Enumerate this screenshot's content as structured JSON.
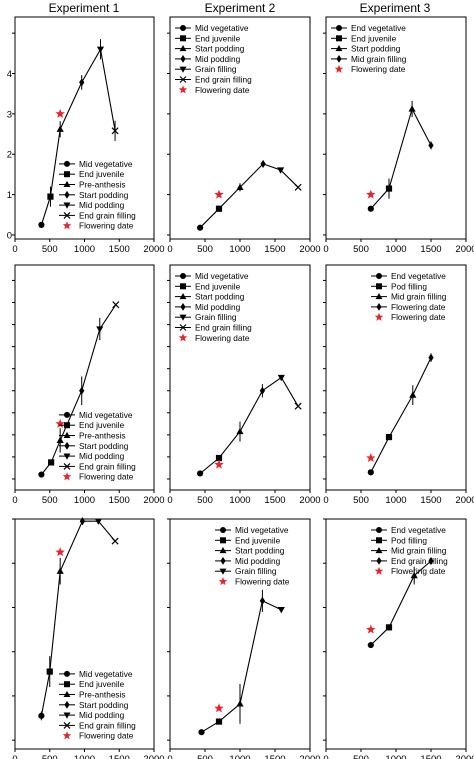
{
  "column_titles": [
    "Experiment 1",
    "Experiment 2",
    "Experiment 3"
  ],
  "colors": {
    "series": "#000000",
    "flowering": "#e8242c"
  },
  "chart_data": [
    {
      "type": "line",
      "title": "Experiment 1",
      "xlim": [
        0,
        2000
      ],
      "ylim": [
        -0.1,
        5.4
      ],
      "xticks": [
        0,
        500,
        1000,
        1500,
        2000
      ],
      "yticks": [
        0,
        1,
        2,
        3,
        4
      ],
      "legend_position": "bottom-right",
      "series": [
        {
          "name": "Mid vegetative",
          "marker": "circle",
          "x": 380,
          "y": 0.25,
          "err": 0.05
        },
        {
          "name": "End juvenile",
          "marker": "square",
          "x": 510,
          "y": 0.95,
          "err": 0.25
        },
        {
          "name": "Pre-anthesis",
          "marker": "triangle-up",
          "x": 650,
          "y": 2.62,
          "err": 0.2
        },
        {
          "name": "Start podding",
          "marker": "diamond",
          "x": 960,
          "y": 3.78,
          "err": 0.18
        },
        {
          "name": "Mid podding",
          "marker": "triangle-down",
          "x": 1230,
          "y": 4.6,
          "err": 0.25
        },
        {
          "name": "End grain filling",
          "marker": "x",
          "x": 1440,
          "y": 2.58,
          "err": 0.25
        }
      ],
      "flowering_date": {
        "name": "Flowering date",
        "x": 650,
        "y": 3.0
      }
    },
    {
      "type": "line",
      "title": "Experiment 2",
      "xlim": [
        0,
        2000
      ],
      "ylim": [
        -0.1,
        5.4
      ],
      "xticks": [
        0,
        500,
        1000,
        1500,
        2000
      ],
      "yticks": [],
      "legend_position": "top-left",
      "series": [
        {
          "name": "Mid vegetative",
          "marker": "circle",
          "x": 430,
          "y": 0.18,
          "err": 0
        },
        {
          "name": "End juvenile",
          "marker": "square",
          "x": 700,
          "y": 0.65,
          "err": 0
        },
        {
          "name": "Start podding",
          "marker": "triangle-up",
          "x": 1000,
          "y": 1.18,
          "err": 0.1
        },
        {
          "name": "Mid podding",
          "marker": "diamond",
          "x": 1330,
          "y": 1.76,
          "err": 0.05
        },
        {
          "name": "Grain filling",
          "marker": "triangle-down",
          "x": 1580,
          "y": 1.61,
          "err": 0
        },
        {
          "name": "End grain filling",
          "marker": "x",
          "x": 1830,
          "y": 1.18,
          "err": 0
        }
      ],
      "flowering_date": {
        "name": "Flowering date",
        "x": 700,
        "y": 1.0
      }
    },
    {
      "type": "line",
      "title": "Experiment 3",
      "xlim": [
        0,
        2000
      ],
      "ylim": [
        -0.1,
        5.4
      ],
      "xticks": [
        0,
        500,
        1000,
        1500,
        2000
      ],
      "yticks": [],
      "legend_position": "top-left",
      "series": [
        {
          "name": "End vegetative",
          "marker": "circle",
          "x": 640,
          "y": 0.65,
          "err": 0
        },
        {
          "name": "End juvenile",
          "marker": "square",
          "x": 900,
          "y": 1.15,
          "err": 0.25
        },
        {
          "name": "Start podding",
          "marker": "triangle-up",
          "x": 1230,
          "y": 3.12,
          "err": 0.2
        },
        {
          "name": "Mid grain filling",
          "marker": "diamond",
          "x": 1500,
          "y": 2.22,
          "err": 0.1
        }
      ],
      "flowering_date": {
        "name": "Flowering date",
        "x": 640,
        "y": 1.0
      }
    },
    {
      "type": "line",
      "xlim": [
        0,
        2000
      ],
      "ylim": [
        -0.5,
        9.7
      ],
      "xticks": [
        0,
        500,
        1000,
        1500,
        2000
      ],
      "yticks": [],
      "legend_position": "bottom-right",
      "series": [
        {
          "name": "Mid vegetative",
          "marker": "circle",
          "x": 380,
          "y": 0.2,
          "err": 0
        },
        {
          "name": "End juvenile",
          "marker": "square",
          "x": 520,
          "y": 0.75,
          "err": 0
        },
        {
          "name": "Pre-anthesis",
          "marker": "triangle-up",
          "x": 650,
          "y": 1.75,
          "err": 0.55
        },
        {
          "name": "Start podding",
          "marker": "diamond",
          "x": 960,
          "y": 4.0,
          "err": 0.65
        },
        {
          "name": "Mid podding",
          "marker": "triangle-down",
          "x": 1220,
          "y": 6.8,
          "err": 0.5
        },
        {
          "name": "End grain filling",
          "marker": "x",
          "x": 1450,
          "y": 7.9,
          "err": 0
        }
      ],
      "flowering_date": {
        "name": "Flowering date",
        "x": 650,
        "y": 2.5
      }
    },
    {
      "type": "line",
      "xlim": [
        0,
        2000
      ],
      "ylim": [
        -0.5,
        9.7
      ],
      "xticks": [
        0,
        500,
        1000,
        1500,
        2000
      ],
      "yticks": [],
      "legend_position": "top-left",
      "series": [
        {
          "name": "Mid vegetative",
          "marker": "circle",
          "x": 430,
          "y": 0.25,
          "err": 0
        },
        {
          "name": "End juvenile",
          "marker": "square",
          "x": 700,
          "y": 0.95,
          "err": 0
        },
        {
          "name": "Start podding",
          "marker": "triangle-up",
          "x": 1000,
          "y": 2.15,
          "err": 0.45
        },
        {
          "name": "Mid podding",
          "marker": "diamond",
          "x": 1320,
          "y": 4.0,
          "err": 0.3
        },
        {
          "name": "Grain filling",
          "marker": "triangle-down",
          "x": 1590,
          "y": 4.6,
          "err": 0
        },
        {
          "name": "End grain filling",
          "marker": "x",
          "x": 1830,
          "y": 3.3,
          "err": 0
        }
      ],
      "flowering_date": {
        "name": "Flowering date",
        "x": 700,
        "y": 0.65
      }
    },
    {
      "type": "line",
      "xlim": [
        0,
        2000
      ],
      "ylim": [
        -0.5,
        9.7
      ],
      "xticks": [
        0,
        500,
        1000,
        1500,
        2000
      ],
      "yticks": [],
      "legend_position": "top-right",
      "series": [
        {
          "name": "End vegetative",
          "marker": "circle",
          "x": 640,
          "y": 0.3,
          "err": 0
        },
        {
          "name": "Pod filling",
          "marker": "square",
          "x": 900,
          "y": 1.9,
          "err": 0
        },
        {
          "name": "Mid grain filling",
          "marker": "triangle-up",
          "x": 1240,
          "y": 3.8,
          "err": 0.45
        },
        {
          "name": "Flowering date",
          "marker": "diamond",
          "x": 1500,
          "y": 5.5,
          "err": 0.2
        }
      ],
      "flowering_date": {
        "name": "Flowering date",
        "x": 640,
        "y": 0.95
      }
    },
    {
      "type": "line",
      "xlim": [
        0,
        2000
      ],
      "ylim": [
        -0.2,
        5.0
      ],
      "xticks": [
        0,
        500,
        1000,
        1500,
        2000
      ],
      "yticks": [],
      "legend_position": "bottom-right",
      "series": [
        {
          "name": "Mid vegetative",
          "marker": "circle",
          "x": 380,
          "y": 0.55,
          "err": 0.1
        },
        {
          "name": "End juvenile",
          "marker": "square",
          "x": 500,
          "y": 1.55,
          "err": 0.35
        },
        {
          "name": "Pre-anthesis",
          "marker": "triangle-up",
          "x": 650,
          "y": 3.82,
          "err": 0.3
        },
        {
          "name": "Start podding",
          "marker": "diamond",
          "x": 970,
          "y": 4.95,
          "err": 0.08
        },
        {
          "name": "Mid podding",
          "marker": "triangle-down",
          "x": 1200,
          "y": 4.95,
          "err": 0
        },
        {
          "name": "End grain filling",
          "marker": "x",
          "x": 1440,
          "y": 4.5,
          "err": 0
        }
      ],
      "flowering_date": {
        "name": "Flowering date",
        "x": 650,
        "y": 4.25
      }
    },
    {
      "type": "line",
      "xlim": [
        0,
        2000
      ],
      "ylim": [
        -0.2,
        5.0
      ],
      "xticks": [
        0,
        500,
        1000,
        1500,
        2000
      ],
      "yticks": [],
      "legend_position": "top-right",
      "series": [
        {
          "name": "Mid vegetative",
          "marker": "circle",
          "x": 450,
          "y": 0.18,
          "err": 0
        },
        {
          "name": "End juvenile",
          "marker": "square",
          "x": 700,
          "y": 0.42,
          "err": 0
        },
        {
          "name": "Start podding",
          "marker": "triangle-up",
          "x": 1000,
          "y": 0.82,
          "err": 0.45
        },
        {
          "name": "Mid podding",
          "marker": "diamond",
          "x": 1320,
          "y": 3.15,
          "err": 0.25
        },
        {
          "name": "Grain filling",
          "marker": "triangle-down",
          "x": 1590,
          "y": 2.95,
          "err": 0
        }
      ],
      "flowering_date": {
        "name": "Flowering date",
        "x": 700,
        "y": 0.72
      }
    },
    {
      "type": "line",
      "xlim": [
        0,
        2000
      ],
      "ylim": [
        -0.2,
        5.0
      ],
      "xticks": [
        0,
        500,
        1000,
        1500,
        2000
      ],
      "yticks": [],
      "legend_position": "top-right",
      "series": [
        {
          "name": "End vegetative",
          "marker": "circle",
          "x": 640,
          "y": 2.15,
          "err": 0
        },
        {
          "name": "Pod filling",
          "marker": "square",
          "x": 900,
          "y": 2.55,
          "err": 0
        },
        {
          "name": "Mid grain filling",
          "marker": "triangle-up",
          "x": 1260,
          "y": 3.72,
          "err": 0.2
        },
        {
          "name": "End grain filling",
          "marker": "diamond",
          "x": 1500,
          "y": 4.05,
          "err": 0
        }
      ],
      "flowering_date": {
        "name": "Flowering date",
        "x": 640,
        "y": 2.5
      }
    }
  ]
}
